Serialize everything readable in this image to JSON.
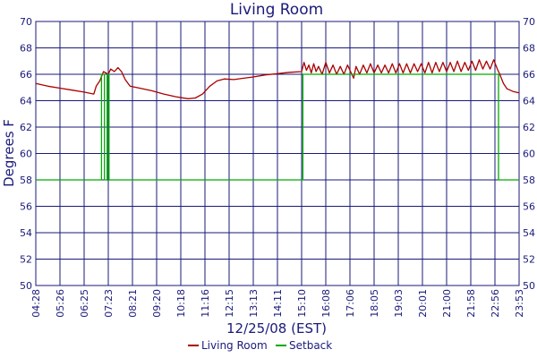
{
  "chart_data": {
    "type": "line",
    "title": "Living Room",
    "xlabel": "12/25/08 (EST)",
    "ylabel": "Degrees F",
    "ylim": [
      50,
      70
    ],
    "y_ticks": [
      50,
      52,
      54,
      56,
      58,
      60,
      62,
      64,
      66,
      68,
      70
    ],
    "x_tick_labels": [
      "04:28",
      "05:26",
      "06:25",
      "07:23",
      "08:21",
      "09:20",
      "10:18",
      "11:16",
      "12:15",
      "13:13",
      "14:11",
      "15:10",
      "16:08",
      "17:06",
      "18:05",
      "19:03",
      "20:01",
      "21:00",
      "21:58",
      "22:56",
      "23:53"
    ],
    "grid": true,
    "legend": "bottom",
    "series": [
      {
        "name": "Living Room",
        "color": "#aa0000",
        "points": [
          [
            0,
            65.3
          ],
          [
            0.5,
            65.1
          ],
          [
            1,
            64.95
          ],
          [
            1.5,
            64.8
          ],
          [
            2,
            64.65
          ],
          [
            2.4,
            64.5
          ],
          [
            2.5,
            65.1
          ],
          [
            2.65,
            65.5
          ],
          [
            2.8,
            66.2
          ],
          [
            3,
            66.0
          ],
          [
            3.1,
            66.4
          ],
          [
            3.25,
            66.2
          ],
          [
            3.4,
            66.5
          ],
          [
            3.55,
            66.2
          ],
          [
            3.7,
            65.6
          ],
          [
            3.9,
            65.1
          ],
          [
            4.3,
            64.95
          ],
          [
            4.8,
            64.75
          ],
          [
            5.3,
            64.5
          ],
          [
            5.8,
            64.3
          ],
          [
            6.3,
            64.15
          ],
          [
            6.6,
            64.2
          ],
          [
            6.9,
            64.5
          ],
          [
            7.2,
            65.1
          ],
          [
            7.5,
            65.5
          ],
          [
            7.8,
            65.65
          ],
          [
            8.2,
            65.6
          ],
          [
            8.6,
            65.7
          ],
          [
            9.0,
            65.8
          ],
          [
            9.5,
            65.95
          ],
          [
            10,
            66.05
          ],
          [
            10.5,
            66.15
          ],
          [
            11,
            66.2
          ],
          [
            11.1,
            66.9
          ],
          [
            11.2,
            66.3
          ],
          [
            11.3,
            66.7
          ],
          [
            11.4,
            66.1
          ],
          [
            11.5,
            66.8
          ],
          [
            11.6,
            66.2
          ],
          [
            11.7,
            66.6
          ],
          [
            11.85,
            66.0
          ],
          [
            12,
            66.9
          ],
          [
            12.15,
            66.1
          ],
          [
            12.3,
            66.7
          ],
          [
            12.45,
            66.0
          ],
          [
            12.6,
            66.6
          ],
          [
            12.75,
            66.0
          ],
          [
            12.9,
            66.7
          ],
          [
            13.05,
            66.1
          ],
          [
            13.15,
            65.7
          ],
          [
            13.25,
            66.6
          ],
          [
            13.4,
            66.0
          ],
          [
            13.55,
            66.7
          ],
          [
            13.7,
            66.1
          ],
          [
            13.85,
            66.8
          ],
          [
            14,
            66.1
          ],
          [
            14.15,
            66.7
          ],
          [
            14.3,
            66.1
          ],
          [
            14.45,
            66.7
          ],
          [
            14.6,
            66.1
          ],
          [
            14.75,
            66.8
          ],
          [
            14.9,
            66.1
          ],
          [
            15.05,
            66.8
          ],
          [
            15.2,
            66.1
          ],
          [
            15.35,
            66.8
          ],
          [
            15.5,
            66.1
          ],
          [
            15.65,
            66.8
          ],
          [
            15.8,
            66.2
          ],
          [
            15.95,
            66.8
          ],
          [
            16.1,
            66.1
          ],
          [
            16.25,
            66.9
          ],
          [
            16.4,
            66.1
          ],
          [
            16.55,
            66.9
          ],
          [
            16.7,
            66.2
          ],
          [
            16.85,
            66.9
          ],
          [
            17,
            66.2
          ],
          [
            17.15,
            66.9
          ],
          [
            17.3,
            66.2
          ],
          [
            17.45,
            67.0
          ],
          [
            17.6,
            66.2
          ],
          [
            17.75,
            66.9
          ],
          [
            17.9,
            66.3
          ],
          [
            18.05,
            67.0
          ],
          [
            18.2,
            66.3
          ],
          [
            18.35,
            67.1
          ],
          [
            18.5,
            66.4
          ],
          [
            18.65,
            67.0
          ],
          [
            18.8,
            66.4
          ],
          [
            18.95,
            67.1
          ],
          [
            19.1,
            66.4
          ],
          [
            19.2,
            66.0
          ],
          [
            19.35,
            65.3
          ],
          [
            19.5,
            64.9
          ],
          [
            19.75,
            64.7
          ],
          [
            20,
            64.6
          ]
        ]
      },
      {
        "name": "Setback",
        "color": "#00aa00",
        "points": [
          [
            0,
            58
          ],
          [
            2.72,
            58
          ],
          [
            2.72,
            66
          ],
          [
            2.84,
            66
          ],
          [
            2.84,
            58
          ],
          [
            2.95,
            58
          ],
          [
            2.95,
            66
          ],
          [
            3.03,
            66
          ],
          [
            3.03,
            58
          ],
          [
            11.05,
            58
          ],
          [
            11.05,
            66
          ],
          [
            19.15,
            66
          ],
          [
            19.15,
            58
          ],
          [
            20,
            58
          ]
        ]
      }
    ]
  }
}
